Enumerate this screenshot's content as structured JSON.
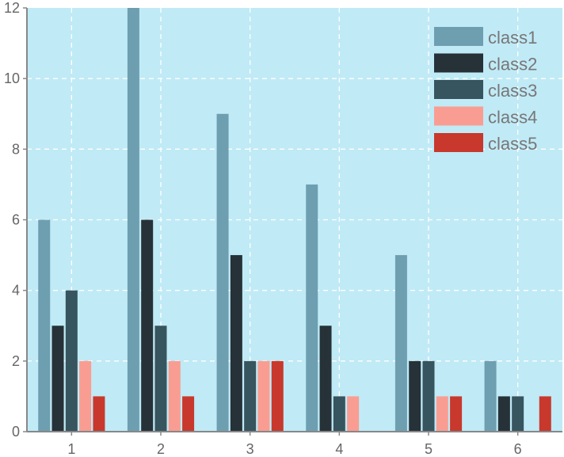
{
  "chart_data": {
    "type": "bar",
    "categories": [
      "1",
      "2",
      "3",
      "4",
      "5",
      "6"
    ],
    "series": [
      {
        "name": "class1",
        "values": [
          6,
          12,
          9,
          7,
          5,
          2
        ],
        "color": "#6e9fb0"
      },
      {
        "name": "class2",
        "values": [
          3,
          6,
          5,
          3,
          2,
          1
        ],
        "color": "#263238"
      },
      {
        "name": "class3",
        "values": [
          4,
          3,
          2,
          1,
          2,
          1
        ],
        "color": "#37555f"
      },
      {
        "name": "class4",
        "values": [
          2,
          2,
          2,
          1,
          1,
          0
        ],
        "color": "#f99d92"
      },
      {
        "name": "class5",
        "values": [
          1,
          1,
          2,
          0,
          1,
          1
        ],
        "color": "#c8382c"
      }
    ],
    "yticks": [
      "0",
      "2",
      "4",
      "6",
      "8",
      "10",
      "12"
    ],
    "ylim": [
      0,
      12
    ],
    "grid": true,
    "legend_position": "top-right",
    "background_color": "#c0eaf6",
    "grid_color": "#ffffff",
    "axis_color": "#888888"
  }
}
